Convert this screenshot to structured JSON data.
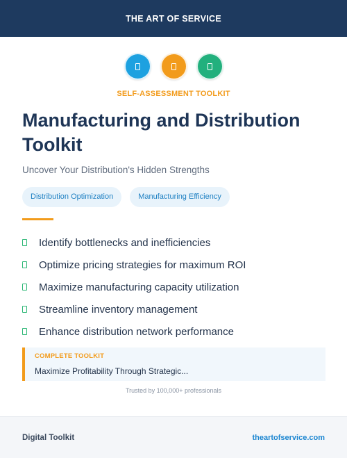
{
  "header": {
    "brand": "THE ART OF SERVICE"
  },
  "icons": [
    {
      "name": "document-icon",
      "color": "#1da1e0"
    },
    {
      "name": "clipboard-icon",
      "color": "#f29b1b"
    },
    {
      "name": "checklist-icon",
      "color": "#22b07d"
    }
  ],
  "hero": {
    "kicker": "SELF-ASSESSMENT TOOLKIT",
    "title": "Manufacturing and Distribution Toolkit",
    "subtitle": "Uncover Your Distribution's Hidden Strengths"
  },
  "tags": [
    "Distribution Optimization",
    "Manufacturing Efficiency"
  ],
  "benefits": [
    "Identify bottlenecks and inefficiencies",
    "Optimize pricing strategies for maximum ROI",
    "Maximize manufacturing capacity utilization",
    "Streamline inventory management",
    "Enhance distribution network performance"
  ],
  "callout": {
    "label": "COMPLETE TOOLKIT",
    "text": "Maximize Profitability Through Strategic..."
  },
  "trust": "Trusted by 100,000+ professionals",
  "footer": {
    "left": "Digital Toolkit",
    "right": "theartofservice.com"
  }
}
